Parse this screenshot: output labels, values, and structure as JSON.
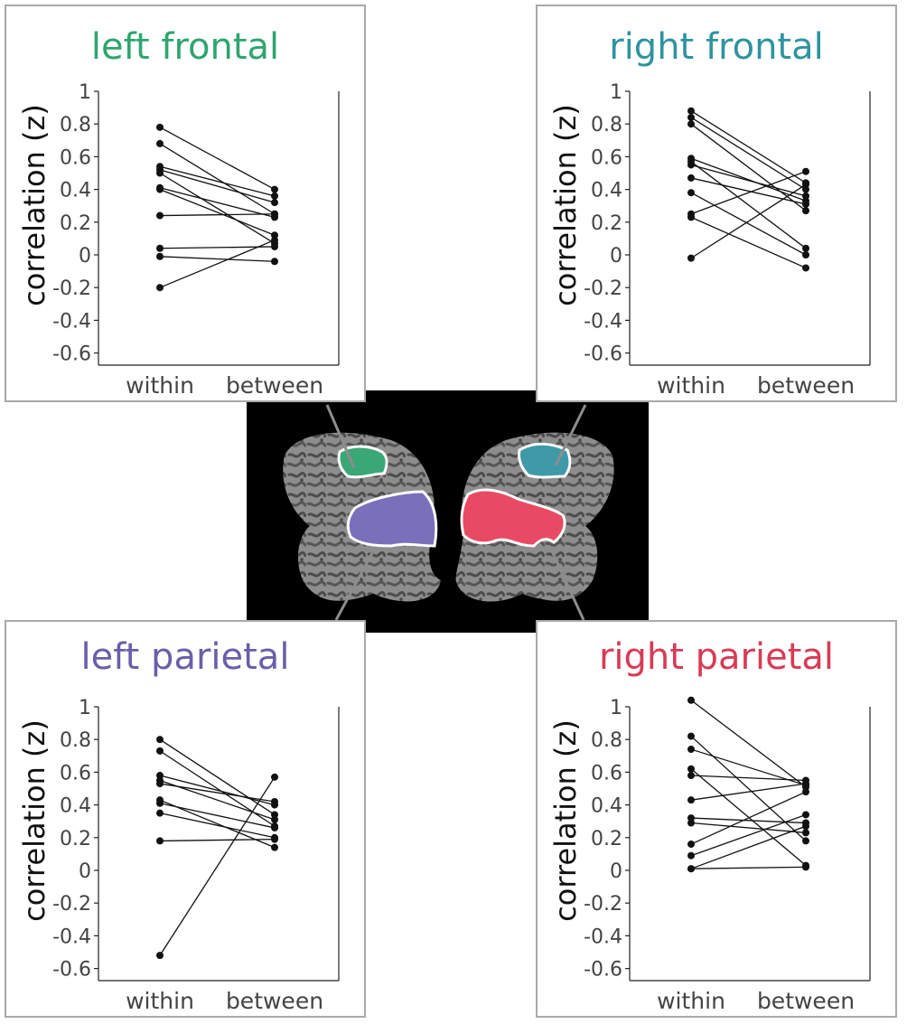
{
  "figure": {
    "brain": {
      "regions": [
        "left frontal",
        "left parietal",
        "right frontal",
        "right parietal"
      ]
    },
    "colors": {
      "left_frontal": "#2fa56f",
      "right_frontal": "#2f93a0",
      "left_parietal": "#6a5fa8",
      "right_parietal": "#d83b55",
      "region_fill_left_frontal": "#3aa776",
      "region_fill_right_frontal": "#3f9aa8",
      "region_fill_left_parietal": "#7a6fbb",
      "region_fill_right_parietal": "#e84a63"
    }
  },
  "chart_data": [
    {
      "type": "line",
      "title": "left frontal",
      "ylabel": "correlation (z)",
      "categories": [
        "within",
        "between"
      ],
      "ylim": [
        -0.67,
        1.0
      ],
      "yticks": [
        "1",
        "0.8",
        "0.6",
        "0.4",
        "0.2",
        "0",
        "-0.2",
        "-0.4",
        "-0.6"
      ],
      "pairs": [
        [
          0.78,
          0.4
        ],
        [
          0.68,
          0.25
        ],
        [
          0.54,
          0.36
        ],
        [
          0.52,
          0.32
        ],
        [
          0.5,
          0.07
        ],
        [
          0.41,
          0.23
        ],
        [
          0.4,
          0.12
        ],
        [
          0.24,
          0.25
        ],
        [
          0.04,
          0.05
        ],
        [
          -0.01,
          -0.04
        ],
        [
          -0.2,
          0.09
        ]
      ]
    },
    {
      "type": "line",
      "title": "right frontal",
      "ylabel": "correlation (z)",
      "categories": [
        "within",
        "between"
      ],
      "ylim": [
        -0.67,
        1.0
      ],
      "yticks": [
        "1",
        "0.8",
        "0.6",
        "0.4",
        "0.2",
        "0",
        "-0.2",
        "-0.4",
        "-0.6"
      ],
      "pairs": [
        [
          0.88,
          0.44
        ],
        [
          0.84,
          0.4
        ],
        [
          0.8,
          0.27
        ],
        [
          0.59,
          0.33
        ],
        [
          0.57,
          0.04
        ],
        [
          0.55,
          0.36
        ],
        [
          0.47,
          0.31
        ],
        [
          0.38,
          0.0
        ],
        [
          0.25,
          0.51
        ],
        [
          0.23,
          -0.08
        ],
        [
          -0.02,
          0.43
        ]
      ]
    },
    {
      "type": "line",
      "title": "left parietal",
      "ylabel": "correlation (z)",
      "categories": [
        "within",
        "between"
      ],
      "ylim": [
        -0.67,
        1.0
      ],
      "yticks": [
        "1",
        "0.8",
        "0.6",
        "0.4",
        "0.2",
        "0",
        "-0.2",
        "-0.4",
        "-0.6"
      ],
      "pairs": [
        [
          0.8,
          0.34
        ],
        [
          0.73,
          0.27
        ],
        [
          0.58,
          0.4
        ],
        [
          0.55,
          0.31
        ],
        [
          0.53,
          0.42
        ],
        [
          0.43,
          0.14
        ],
        [
          0.41,
          0.26
        ],
        [
          0.35,
          0.2
        ],
        [
          0.18,
          0.19
        ],
        [
          -0.52,
          0.57
        ]
      ]
    },
    {
      "type": "line",
      "title": "right parietal",
      "ylabel": "correlation (z)",
      "categories": [
        "within",
        "between"
      ],
      "ylim": [
        -0.67,
        1.0
      ],
      "yticks": [
        "1",
        "0.8",
        "0.6",
        "0.4",
        "0.2",
        "0",
        "-0.2",
        "-0.4",
        "-0.6"
      ],
      "pairs": [
        [
          1.04,
          0.51
        ],
        [
          0.82,
          0.18
        ],
        [
          0.74,
          0.52
        ],
        [
          0.62,
          0.03
        ],
        [
          0.58,
          0.55
        ],
        [
          0.43,
          0.53
        ],
        [
          0.32,
          0.29
        ],
        [
          0.29,
          0.23
        ],
        [
          0.16,
          0.48
        ],
        [
          0.09,
          0.34
        ],
        [
          0.01,
          0.02
        ],
        [
          0.01,
          0.27
        ]
      ]
    }
  ]
}
